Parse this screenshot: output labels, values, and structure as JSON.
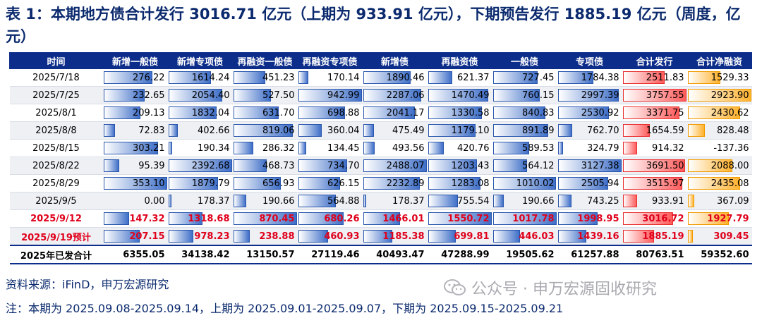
{
  "title": "表 1：本期地方债合计发行 3016.71 亿元（上期为 933.91 亿元），下期预告发行 1885.19 亿元（周度，亿元）",
  "columns": [
    "时间",
    "新增一般债",
    "新增专项债",
    "再融资一般债",
    "再融资专项债",
    "新增债",
    "再融资债",
    "一般债",
    "专项债",
    "合计发行",
    "合计净融资"
  ],
  "rows": [
    {
      "date": "2025/7/18",
      "values": [
        "276.22",
        "1614.24",
        "451.23",
        "170.14",
        "1890.46",
        "621.37",
        "727.45",
        "1784.38",
        "2511.83",
        "1529.33"
      ]
    },
    {
      "date": "2025/7/25",
      "values": [
        "232.65",
        "2054.40",
        "527.50",
        "942.99",
        "2287.06",
        "1470.49",
        "760.15",
        "2997.39",
        "3757.55",
        "2923.90"
      ]
    },
    {
      "date": "2025/8/1",
      "values": [
        "209.13",
        "1832.04",
        "631.70",
        "698.88",
        "2041.17",
        "1330.58",
        "840.83",
        "2530.92",
        "3371.75",
        "2430.62"
      ]
    },
    {
      "date": "2025/8/8",
      "values": [
        "72.83",
        "402.66",
        "819.06",
        "360.04",
        "475.49",
        "1179.10",
        "891.89",
        "762.70",
        "1654.59",
        "828.48"
      ]
    },
    {
      "date": "2025/8/15",
      "values": [
        "303.21",
        "190.34",
        "286.32",
        "134.45",
        "493.56",
        "420.76",
        "589.53",
        "324.79",
        "914.32",
        "-137.36"
      ]
    },
    {
      "date": "2025/8/22",
      "values": [
        "95.39",
        "2392.68",
        "468.73",
        "734.70",
        "2488.07",
        "1203.43",
        "564.12",
        "3127.38",
        "3691.50",
        "2088.00"
      ]
    },
    {
      "date": "2025/8/29",
      "values": [
        "353.10",
        "1879.79",
        "656.93",
        "626.15",
        "2232.89",
        "1283.08",
        "1010.02",
        "2505.94",
        "3515.97",
        "2435.08"
      ]
    },
    {
      "date": "2025/9/5",
      "values": [
        "0.00",
        "178.37",
        "190.66",
        "564.88",
        "178.37",
        "755.54",
        "190.66",
        "743.25",
        "933.91",
        "367.09"
      ]
    },
    {
      "date": "2025/9/12",
      "values": [
        "147.32",
        "1318.68",
        "870.45",
        "680.26",
        "1466.01",
        "1550.72",
        "1017.78",
        "1998.95",
        "3016.72",
        "1927.79"
      ]
    },
    {
      "date": "2025/9/19预计",
      "values": [
        "207.15",
        "978.23",
        "238.88",
        "460.93",
        "1185.38",
        "699.81",
        "446.03",
        "1439.16",
        "1885.19",
        "309.45"
      ]
    }
  ],
  "total": {
    "label": "2025年已发合计",
    "values": [
      "6355.05",
      "34138.42",
      "13150.57",
      "27119.46",
      "40493.47",
      "47288.99",
      "19505.62",
      "61257.88",
      "80763.51",
      "59352.60"
    ]
  },
  "source": "资料来源：iFinD，申万宏源研究",
  "note": "注：本期为 2025.09.08-2025.09.14，上期为 2025.09.01-2025.09.07，下期为 2025.09.15-2025.09.21",
  "watermark": "公众号 · 申万宏源固收研究",
  "colors": {
    "header": "#0c2d8a",
    "bar_blue": "#3f6fc8",
    "bar_red": "#ff5a5a",
    "bar_orange": "#ffb22e",
    "highlight_text": "#e0001b"
  }
}
